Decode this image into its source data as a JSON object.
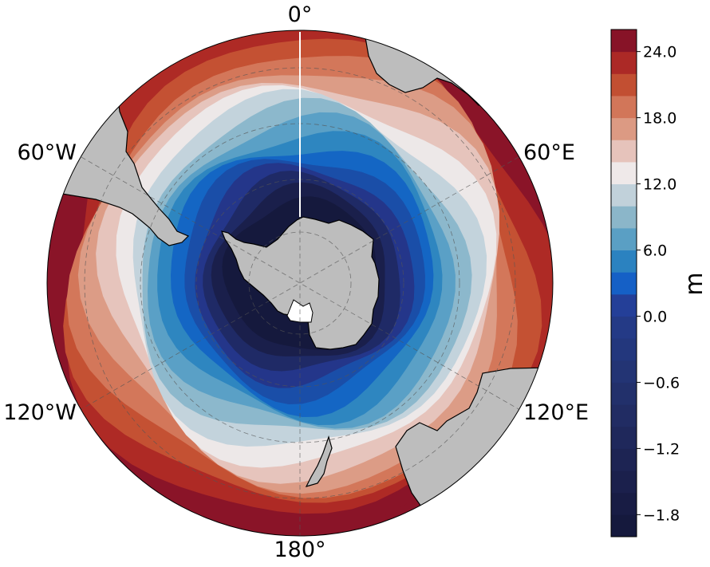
{
  "map": {
    "projection": "south-polar-stereographic",
    "longitude_labels": {
      "top": "0°",
      "upper_left": "60°W",
      "upper_right": "60°E",
      "lower_left": "120°W",
      "lower_right": "120°E",
      "bottom": "180°"
    },
    "colors": {
      "land": "#bdbdbd",
      "coastline": "#000000",
      "gridlines": "#555555"
    },
    "field_bands": [
      "#15193d",
      "#1a1f4b",
      "#1f2a66",
      "#24368a",
      "#1a4ea8",
      "#1466c4",
      "#2e86c0",
      "#5aa0c6",
      "#8cb8cc",
      "#c3d3dc",
      "#ede8e8",
      "#e6c4bc",
      "#dc9c86",
      "#d3775a",
      "#c45133",
      "#ae2a25",
      "#8a1428"
    ]
  },
  "colorbar": {
    "unit": "m",
    "ticks": [
      "24.0",
      "18.0",
      "12.0",
      "6.0",
      "0.0",
      "−0.6",
      "−1.2",
      "−1.8"
    ],
    "levels": [
      {
        "range": "−2.0 – −1.8",
        "color": "#15193d"
      },
      {
        "range": "−1.8 – −1.6",
        "color": "#181c44"
      },
      {
        "range": "−1.6 – −1.4",
        "color": "#1b204c"
      },
      {
        "range": "−1.4 – −1.2",
        "color": "#1d2453"
      },
      {
        "range": "−1.2 – −1.0",
        "color": "#1f285b"
      },
      {
        "range": "−1.0 – −0.8",
        "color": "#212c63"
      },
      {
        "range": "−0.8 – −0.6",
        "color": "#22306b"
      },
      {
        "range": "−0.6 – −0.4",
        "color": "#233474"
      },
      {
        "range": "−0.4 – −0.2",
        "color": "#23377d"
      },
      {
        "range": "−0.2 – 0.0",
        "color": "#243a86"
      },
      {
        "range": "0.0 – 2.0",
        "color": "#243f98"
      },
      {
        "range": "2.0 – 4.0",
        "color": "#1560c6"
      },
      {
        "range": "4.0 – 6.0",
        "color": "#2b82c0"
      },
      {
        "range": "6.0 – 8.0",
        "color": "#5a9fc4"
      },
      {
        "range": "8.0 – 10.0",
        "color": "#8bb6c9"
      },
      {
        "range": "10.0 – 12.0",
        "color": "#c1d1da"
      },
      {
        "range": "12.0 – 14.0",
        "color": "#efe9e9"
      },
      {
        "range": "14.0 – 16.0",
        "color": "#e6c3bb"
      },
      {
        "range": "16.0 – 18.0",
        "color": "#dc9a83"
      },
      {
        "range": "18.0 – 20.0",
        "color": "#d27659"
      },
      {
        "range": "20.0 – 22.0",
        "color": "#c24f32"
      },
      {
        "range": "22.0 – 24.0",
        "color": "#ac2926"
      },
      {
        "range": "24.0 – 26.0",
        "color": "#871327"
      }
    ]
  }
}
